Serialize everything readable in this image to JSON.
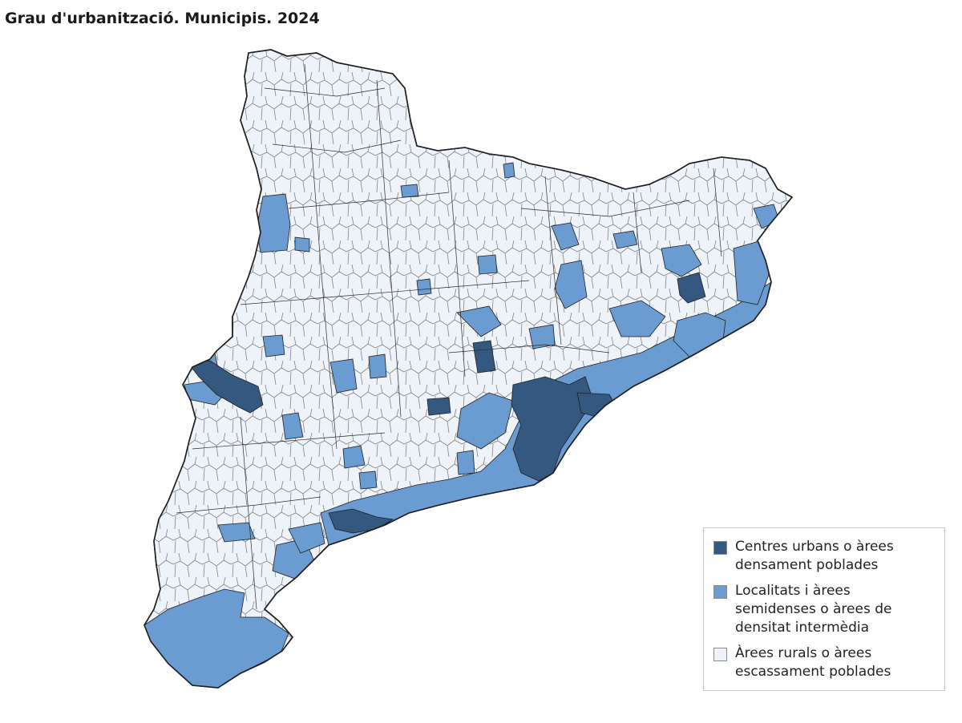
{
  "title": "Grau d'urbanització. Municipis. 2024",
  "legend": {
    "items": [
      {
        "label": "Centres urbans o àrees\ndensament poblades",
        "color": "#34587f"
      },
      {
        "label": "Localitats i àrees\nsemidenses o àrees de\ndensitat intermèdia",
        "color": "#6a9bd1"
      },
      {
        "label": "Àrees rurals o àrees\nescassament poblades",
        "color": "#eef3f9"
      }
    ]
  },
  "colors": {
    "boundary": "#1f1f1f",
    "rural": "#eef3f9",
    "intermediate": "#6a9bd1",
    "urban": "#34587f"
  }
}
